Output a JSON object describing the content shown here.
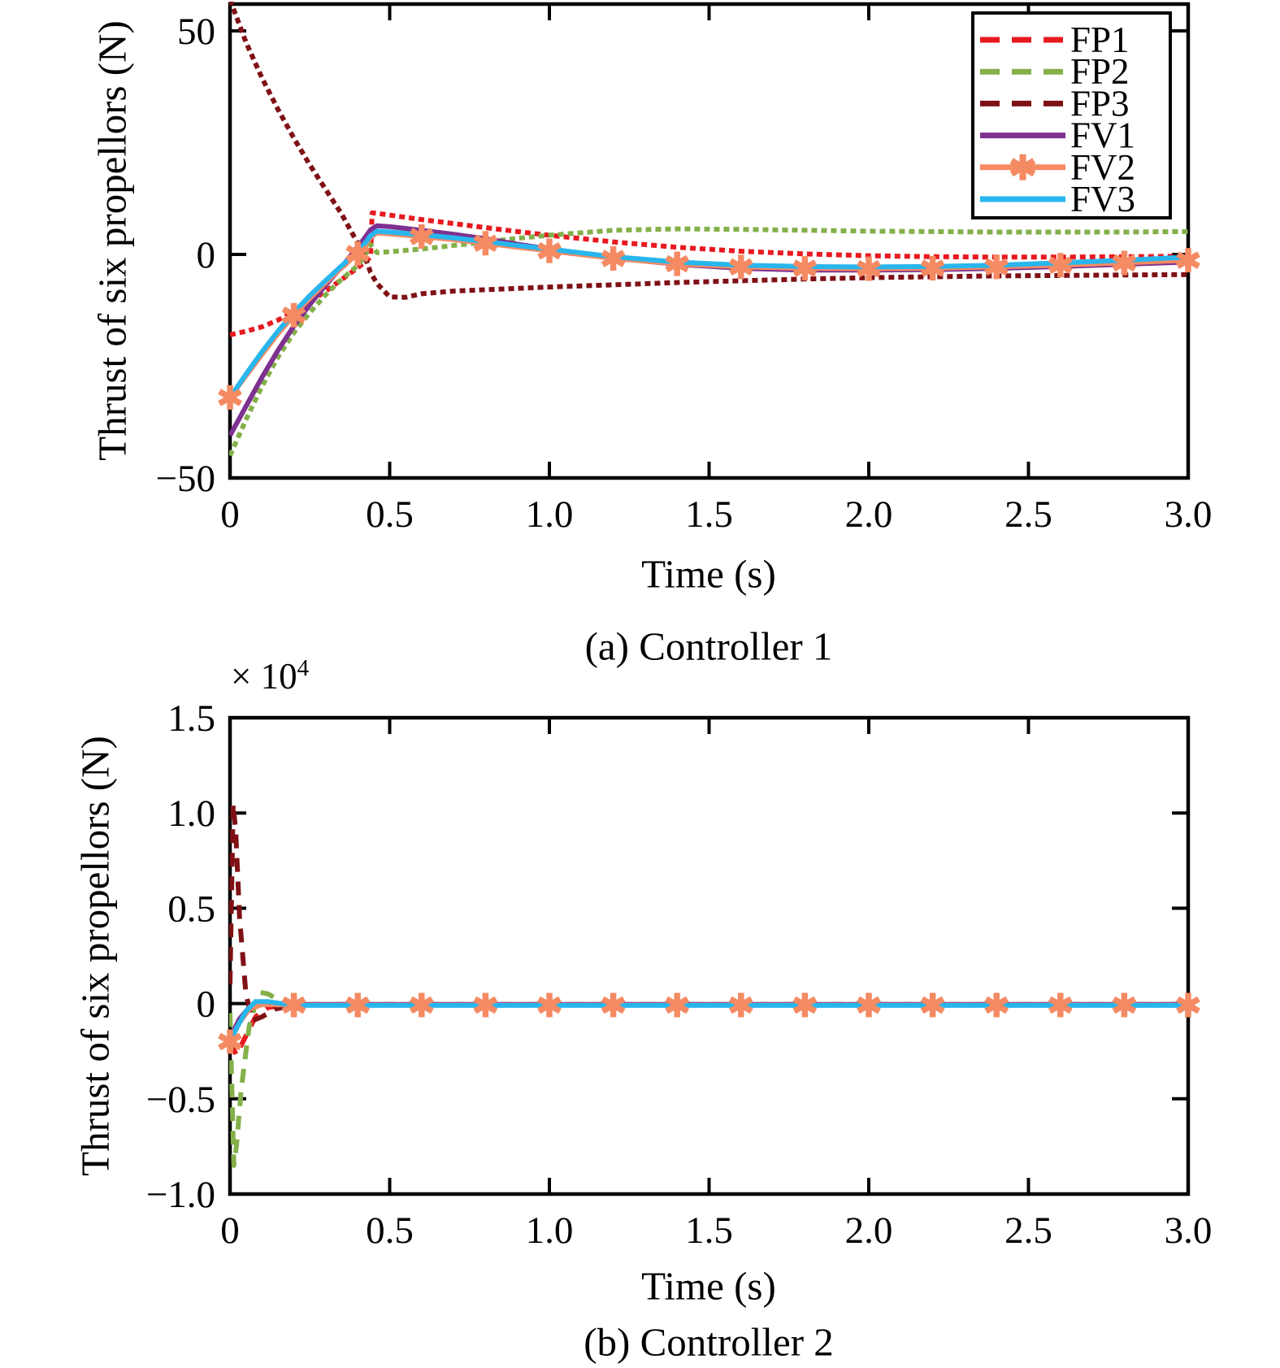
{
  "figure": {
    "background": "#ffffff"
  },
  "chart_data": [
    {
      "id": "a",
      "type": "line",
      "caption": "(a) Controller 1",
      "xlabel": "Time (s)",
      "ylabel": "Thrust of six propellors (N)",
      "xlim": [
        0,
        3
      ],
      "ylim": [
        -50,
        56
      ],
      "grid": false,
      "legend_position": "top-right-inside",
      "legend_visible": true,
      "xticks": [
        {
          "v": 0,
          "label": "0"
        },
        {
          "v": 0.5,
          "label": "0.5"
        },
        {
          "v": 1.0,
          "label": "1.0"
        },
        {
          "v": 1.5,
          "label": "1.5"
        },
        {
          "v": 2.0,
          "label": "2.0"
        },
        {
          "v": 2.5,
          "label": "2.5"
        },
        {
          "v": 3.0,
          "label": "3.0"
        }
      ],
      "yticks": [
        {
          "v": 50,
          "label": "50"
        },
        {
          "v": 0,
          "label": "0"
        },
        {
          "v": -50,
          "label": "−50"
        }
      ],
      "series": [
        {
          "name": "FP1",
          "color": "#e8191f",
          "style": "dashed",
          "t": [
            0,
            0.05,
            0.1,
            0.15,
            0.2,
            0.25,
            0.3,
            0.35,
            0.4,
            0.42,
            0.44,
            0.445,
            0.46,
            0.5,
            0.6,
            0.7,
            0.8,
            0.9,
            1.0,
            1.2,
            1.4,
            1.6,
            1.8,
            2.0,
            2.2,
            2.4,
            2.6,
            2.8,
            3.0
          ],
          "v": [
            -18,
            -17.2,
            -16.2,
            -14.7,
            -12.8,
            -10.6,
            -8.2,
            -5.6,
            -3.0,
            -1.8,
            -0.6,
            9.3,
            9.2,
            8.8,
            7.8,
            6.9,
            6.0,
            5.1,
            4.3,
            2.8,
            1.6,
            0.7,
            0.1,
            -0.3,
            -0.5,
            -0.6,
            -0.6,
            -0.5,
            -0.4
          ]
        },
        {
          "name": "FP2",
          "color": "#84b04a",
          "style": "dashed",
          "t": [
            0,
            0.05,
            0.1,
            0.15,
            0.2,
            0.25,
            0.3,
            0.35,
            0.4,
            0.42,
            0.44,
            0.46,
            0.5,
            0.6,
            0.7,
            0.8,
            0.9,
            1.0,
            1.2,
            1.4,
            1.6,
            1.8,
            2.0,
            2.2,
            2.4,
            2.6,
            2.8,
            3.0
          ],
          "v": [
            -45,
            -37,
            -29.5,
            -23,
            -17.5,
            -13,
            -9,
            -5.5,
            -2.5,
            -0.5,
            2.2,
            0.4,
            0.6,
            1.2,
            2.0,
            2.8,
            3.6,
            4.3,
            5.4,
            5.7,
            5.6,
            5.4,
            5.2,
            5.1,
            5.0,
            5.0,
            5.0,
            5.1
          ]
        },
        {
          "name": "FP3",
          "color": "#7f1116",
          "style": "dashed",
          "t": [
            0,
            0.05,
            0.1,
            0.15,
            0.2,
            0.25,
            0.3,
            0.35,
            0.4,
            0.42,
            0.44,
            0.46,
            0.5,
            0.55,
            0.6,
            0.7,
            0.8,
            0.9,
            1.0,
            1.2,
            1.4,
            1.6,
            1.8,
            2.0,
            2.2,
            2.4,
            2.6,
            2.8,
            3.0
          ],
          "v": [
            57,
            47.5,
            39.5,
            32.5,
            26,
            20,
            14.5,
            9,
            2.5,
            0.0,
            -4.0,
            -6.5,
            -9.5,
            -9.6,
            -8.8,
            -8.2,
            -7.9,
            -7.6,
            -7.3,
            -6.8,
            -6.3,
            -5.9,
            -5.5,
            -5.2,
            -5.0,
            -4.8,
            -4.7,
            -4.6,
            -4.5
          ]
        },
        {
          "name": "FV1",
          "color": "#7d3190",
          "style": "solid",
          "t": [
            0,
            0.05,
            0.1,
            0.15,
            0.2,
            0.25,
            0.3,
            0.35,
            0.4,
            0.42,
            0.44,
            0.46,
            0.5,
            0.6,
            0.7,
            0.8,
            0.9,
            1.0,
            1.2,
            1.4,
            1.6,
            1.8,
            2.0,
            2.2,
            2.4,
            2.6,
            2.8,
            3.0
          ],
          "v": [
            -40.5,
            -34,
            -27.5,
            -21.5,
            -16,
            -11.2,
            -6.8,
            -2.8,
            1.7,
            3.5,
            5.5,
            6.4,
            6.2,
            5.4,
            4.5,
            3.5,
            2.3,
            1.2,
            -0.8,
            -2.2,
            -3.1,
            -3.5,
            -3.5,
            -3.4,
            -3.1,
            -2.7,
            -2.2,
            -1.7
          ]
        },
        {
          "name": "FV2",
          "color": "#f58a63",
          "style": "solid",
          "marker": "asterisk",
          "marker_interval": 0.2,
          "t": [
            0,
            0.05,
            0.1,
            0.15,
            0.2,
            0.25,
            0.3,
            0.35,
            0.4,
            0.42,
            0.44,
            0.46,
            0.5,
            0.6,
            0.7,
            0.8,
            0.9,
            1.0,
            1.2,
            1.4,
            1.6,
            1.8,
            2.0,
            2.2,
            2.4,
            2.6,
            2.8,
            3.0
          ],
          "v": [
            -32,
            -27.2,
            -22.4,
            -17.8,
            -13.6,
            -9.8,
            -6.3,
            -3.0,
            0.2,
            1.8,
            3.8,
            4.8,
            4.6,
            4.0,
            3.3,
            2.5,
            1.6,
            0.8,
            -0.9,
            -2.1,
            -2.8,
            -3.1,
            -3.2,
            -3.1,
            -2.8,
            -2.4,
            -1.9,
            -1.3
          ]
        },
        {
          "name": "FV3",
          "color": "#28b6ed",
          "style": "solid",
          "t": [
            0,
            0.05,
            0.1,
            0.15,
            0.2,
            0.25,
            0.3,
            0.35,
            0.4,
            0.42,
            0.44,
            0.46,
            0.5,
            0.6,
            0.7,
            0.8,
            0.9,
            1.0,
            1.2,
            1.4,
            1.6,
            1.8,
            2.0,
            2.2,
            2.4,
            2.6,
            2.8,
            3.0
          ],
          "v": [
            -32,
            -26.8,
            -21.8,
            -17.2,
            -13,
            -9.2,
            -5.8,
            -2.5,
            0.7,
            2.2,
            4.2,
            5.2,
            5.0,
            4.4,
            3.7,
            2.9,
            2.0,
            1.2,
            -0.5,
            -1.7,
            -2.4,
            -2.7,
            -2.8,
            -2.7,
            -2.4,
            -1.9,
            -1.3,
            -0.6
          ]
        }
      ]
    },
    {
      "id": "b",
      "type": "line",
      "caption": "(b) Controller 2",
      "xlabel": "Time (s)",
      "ylabel": "Thrust of six propellors (N)",
      "offset_base": "× 10",
      "offset_exp": "4",
      "xlim": [
        0,
        3
      ],
      "ylim": [
        -1.0,
        1.5
      ],
      "grid": false,
      "legend_visible": false,
      "xticks": [
        {
          "v": 0,
          "label": "0"
        },
        {
          "v": 0.5,
          "label": "0.5"
        },
        {
          "v": 1.0,
          "label": "1.0"
        },
        {
          "v": 1.5,
          "label": "1.5"
        },
        {
          "v": 2.0,
          "label": "2.0"
        },
        {
          "v": 2.5,
          "label": "2.5"
        },
        {
          "v": 3.0,
          "label": "3.0"
        }
      ],
      "yticks": [
        {
          "v": 1.5,
          "label": "1.5"
        },
        {
          "v": 1.0,
          "label": "1.0"
        },
        {
          "v": 0.5,
          "label": "0.5"
        },
        {
          "v": 0,
          "label": "0"
        },
        {
          "v": -0.5,
          "label": "−0.5"
        },
        {
          "v": -1.0,
          "label": "−1.0"
        }
      ],
      "series": [
        {
          "name": "FP1",
          "color": "#e8191f",
          "style": "dashed",
          "t": [
            0,
            0.02,
            0.05,
            0.08,
            0.12,
            0.2,
            3.0
          ],
          "v": [
            -0.2,
            -0.27,
            -0.17,
            -0.07,
            -0.02,
            -0.005,
            -0.005
          ]
        },
        {
          "name": "FP2",
          "color": "#84b04a",
          "style": "dashed",
          "t": [
            0,
            0.012,
            0.02,
            0.035,
            0.06,
            0.09,
            0.12,
            0.16,
            0.2,
            3.0
          ],
          "v": [
            -0.05,
            -0.85,
            -0.75,
            -0.45,
            -0.12,
            0.06,
            0.05,
            0.01,
            -0.005,
            -0.005
          ]
        },
        {
          "name": "FP3",
          "color": "#7f1116",
          "style": "dashed",
          "t": [
            0,
            0.01,
            0.018,
            0.03,
            0.05,
            0.07,
            0.1,
            0.14,
            0.2,
            3.0
          ],
          "v": [
            0.1,
            1.05,
            0.9,
            0.45,
            0.05,
            -0.09,
            -0.07,
            -0.03,
            -0.008,
            -0.008
          ]
        },
        {
          "name": "FV1",
          "color": "#7d3190",
          "style": "solid",
          "t": [
            0,
            0.03,
            0.06,
            0.1,
            0.2,
            3.0
          ],
          "v": [
            -0.18,
            -0.08,
            -0.02,
            0,
            -0.005,
            -0.005
          ]
        },
        {
          "name": "FV2",
          "color": "#f58a63",
          "style": "solid",
          "marker": "asterisk",
          "marker_interval": 0.2,
          "t": [
            0,
            0.03,
            0.06,
            0.1,
            0.2,
            3.0
          ],
          "v": [
            -0.2,
            -0.1,
            -0.03,
            -0.005,
            -0.008,
            -0.008
          ]
        },
        {
          "name": "FV3",
          "color": "#28b6ed",
          "style": "solid",
          "t": [
            0,
            0.02,
            0.05,
            0.08,
            0.12,
            0.2,
            3.0
          ],
          "v": [
            -0.2,
            -0.13,
            -0.04,
            0.01,
            0.01,
            -0.01,
            -0.01
          ]
        }
      ]
    }
  ]
}
